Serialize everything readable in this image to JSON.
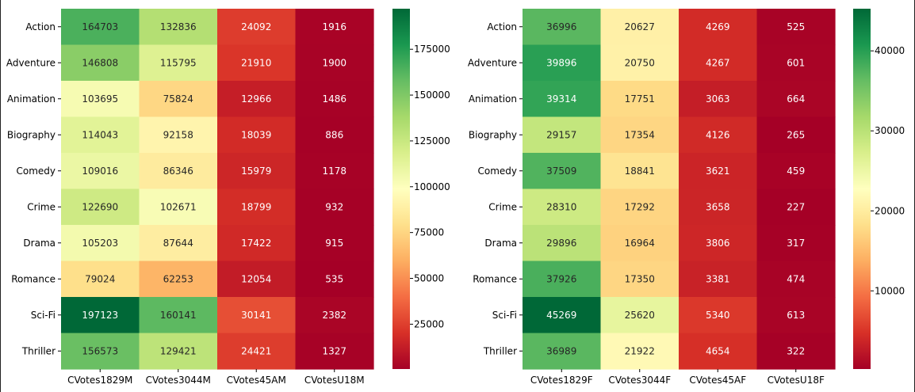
{
  "chart_data": [
    {
      "type": "heatmap",
      "rows": [
        "Action",
        "Adventure",
        "Animation",
        "Biography",
        "Comedy",
        "Crime",
        "Drama",
        "Romance",
        "Sci-Fi",
        "Thriller"
      ],
      "columns": [
        "CVotes1829M",
        "CVotes3044M",
        "CVotes45AM",
        "CVotesU18M"
      ],
      "values": [
        [
          164703,
          132836,
          24092,
          1916
        ],
        [
          146808,
          115795,
          21910,
          1900
        ],
        [
          103695,
          75824,
          12966,
          1486
        ],
        [
          114043,
          92158,
          18039,
          886
        ],
        [
          109016,
          86346,
          15979,
          1178
        ],
        [
          122690,
          102671,
          18799,
          932
        ],
        [
          105203,
          87644,
          17422,
          915
        ],
        [
          79024,
          62253,
          12054,
          535
        ],
        [
          197123,
          160141,
          30141,
          2382
        ],
        [
          156573,
          129421,
          24421,
          1327
        ]
      ],
      "colormap": "RdYlGn",
      "vmin": 535,
      "vmax": 197123,
      "colorbar_ticks": [
        25000,
        50000,
        75000,
        100000,
        125000,
        150000,
        175000
      ],
      "colorbar_tick_labels": [
        "25000",
        "50000",
        "75000",
        "100000",
        "125000",
        "150000",
        "175000"
      ]
    },
    {
      "type": "heatmap",
      "rows": [
        "Action",
        "Adventure",
        "Animation",
        "Biography",
        "Comedy",
        "Crime",
        "Drama",
        "Romance",
        "Sci-Fi",
        "Thriller"
      ],
      "columns": [
        "CVotes1829F",
        "CVotes3044F",
        "CVotes45AF",
        "CVotesU18F"
      ],
      "values": [
        [
          36996,
          20627,
          4269,
          525
        ],
        [
          39896,
          20750,
          4267,
          601
        ],
        [
          39314,
          17751,
          3063,
          664
        ],
        [
          29157,
          17354,
          4126,
          265
        ],
        [
          37509,
          18841,
          3621,
          459
        ],
        [
          28310,
          17292,
          3658,
          227
        ],
        [
          29896,
          16964,
          3806,
          317
        ],
        [
          37926,
          17350,
          3381,
          474
        ],
        [
          45269,
          25620,
          5340,
          613
        ],
        [
          36989,
          21922,
          4654,
          322
        ]
      ],
      "colormap": "RdYlGn",
      "vmin": 227,
      "vmax": 45269,
      "colorbar_ticks": [
        10000,
        20000,
        30000,
        40000
      ],
      "colorbar_tick_labels": [
        "10000",
        "20000",
        "30000",
        "40000"
      ]
    }
  ]
}
